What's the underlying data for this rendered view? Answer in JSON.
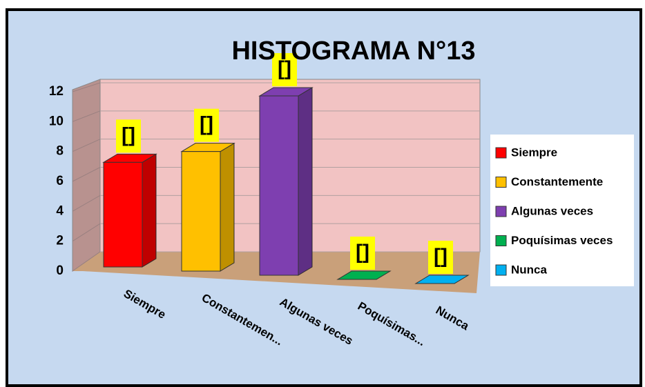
{
  "chart_data": {
    "type": "bar3d",
    "title": "HISTOGRAMA N°13",
    "categories": [
      "Siempre",
      "Constantemen...",
      "Algunas veces",
      "Poquísimas...",
      "Nunca"
    ],
    "values": [
      7,
      8,
      12,
      0,
      0
    ],
    "value_labels": [
      "[]",
      "[]",
      "[]",
      "[]",
      "[]"
    ],
    "colors": [
      "#ff0000",
      "#ffc000",
      "#7e3fb0",
      "#00b050",
      "#00b0f0"
    ],
    "legend": [
      "Siempre",
      "Constantemente",
      "Algunas veces",
      "Poquísimas veces",
      "Nunca"
    ],
    "legend_position": "right",
    "ylim": [
      0,
      12
    ],
    "yticks": [
      0,
      2,
      4,
      6,
      8,
      10,
      12
    ],
    "grid": true
  }
}
